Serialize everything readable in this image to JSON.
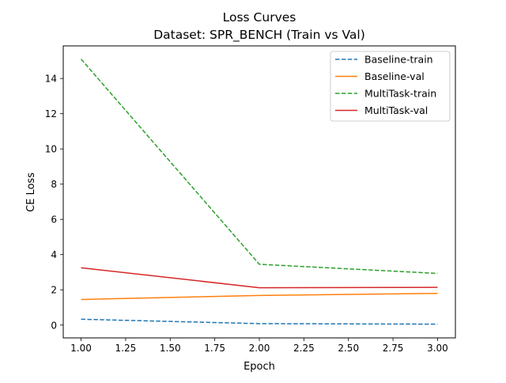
{
  "chart_data": {
    "type": "line",
    "title_line1": "Loss Curves",
    "title_line2": "Dataset: SPR_BENCH (Train vs Val)",
    "xlabel": "Epoch",
    "ylabel": "CE Loss",
    "xlim": [
      0.9,
      3.1
    ],
    "ylim": [
      -0.73,
      15.85
    ],
    "xticks": [
      1.0,
      1.25,
      1.5,
      1.75,
      2.0,
      2.25,
      2.5,
      2.75,
      3.0
    ],
    "xtick_labels": [
      "1.00",
      "1.25",
      "1.50",
      "1.75",
      "2.00",
      "2.25",
      "2.50",
      "2.75",
      "3.00"
    ],
    "yticks": [
      0,
      2,
      4,
      6,
      8,
      10,
      12,
      14
    ],
    "ytick_labels": [
      "0",
      "2",
      "4",
      "6",
      "8",
      "10",
      "12",
      "14"
    ],
    "grid": false,
    "legend_position": "upper-right",
    "x": [
      1,
      2,
      3
    ],
    "series": [
      {
        "name": "Baseline-train",
        "values": [
          0.33,
          0.08,
          0.05
        ],
        "color": "#1f77b4",
        "dashed": true
      },
      {
        "name": "Baseline-val",
        "values": [
          1.45,
          1.68,
          1.8
        ],
        "color": "#ff7f0e",
        "dashed": false
      },
      {
        "name": "MultiTask-train",
        "values": [
          15.1,
          3.45,
          2.93
        ],
        "color": "#2ca02c",
        "dashed": true
      },
      {
        "name": "MultiTask-val",
        "values": [
          3.25,
          2.12,
          2.14
        ],
        "color": "#d62728",
        "dashed": false
      }
    ]
  }
}
